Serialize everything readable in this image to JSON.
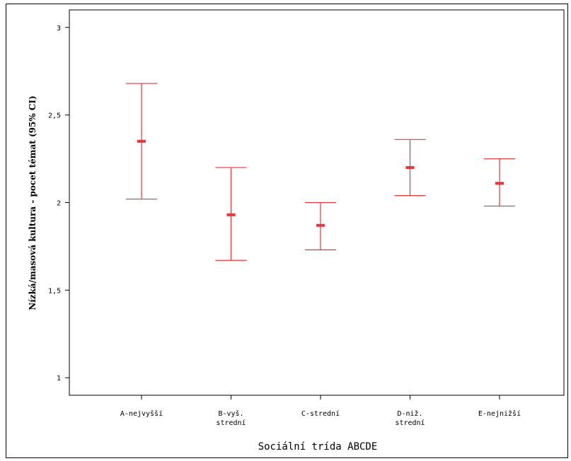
{
  "chart_data": {
    "type": "errorbar",
    "xlabel": "Sociální trída ABCDE",
    "ylabel": "Nízká/masová kultura - pocet témat (95% CI)",
    "ylim": [
      0.9,
      3.1
    ],
    "yticks": [
      {
        "value": 1,
        "label": "1"
      },
      {
        "value": 1.5,
        "label": "1,5"
      },
      {
        "value": 2,
        "label": "2"
      },
      {
        "value": 2.5,
        "label": "2,5"
      },
      {
        "value": 3,
        "label": "3"
      }
    ],
    "categories": [
      {
        "label": [
          "A-nejvyšší"
        ],
        "mean": 2.35,
        "lower": 2.02,
        "upper": 2.68
      },
      {
        "label": [
          "B-vyš.",
          "strední"
        ],
        "mean": 1.93,
        "lower": 1.67,
        "upper": 2.2
      },
      {
        "label": [
          "C-strední"
        ],
        "mean": 1.87,
        "lower": 1.73,
        "upper": 2.0
      },
      {
        "label": [
          "D-niž.",
          "strední"
        ],
        "mean": 2.2,
        "lower": 2.04,
        "upper": 2.36
      },
      {
        "label": [
          "E-nejnižší"
        ],
        "mean": 2.11,
        "lower": 1.98,
        "upper": 2.25
      }
    ],
    "grid": false,
    "color": "#e8353a"
  }
}
